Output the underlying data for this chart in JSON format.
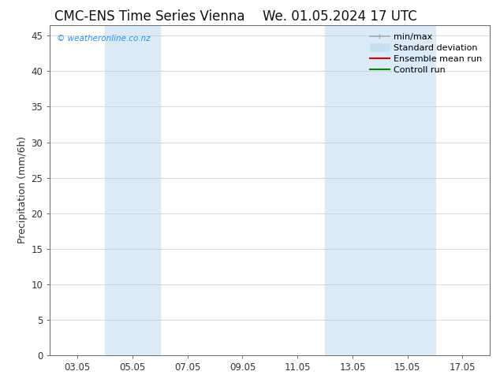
{
  "title_left": "CMC-ENS Time Series Vienna",
  "title_right": "We. 01.05.2024 17 UTC",
  "ylabel": "Precipitation (mm/6h)",
  "xtick_labels": [
    "03.05",
    "05.05",
    "07.05",
    "09.05",
    "11.05",
    "13.05",
    "15.05",
    "17.05"
  ],
  "xtick_positions": [
    1.0,
    3.0,
    5.0,
    7.0,
    9.0,
    11.0,
    13.0,
    15.0
  ],
  "xlim": [
    0,
    16
  ],
  "ylim": [
    0,
    46.5
  ],
  "yticks": [
    0,
    5,
    10,
    15,
    20,
    25,
    30,
    35,
    40,
    45
  ],
  "shaded_regions": [
    {
      "xmin": 2.0,
      "xmax": 4.0,
      "color": "#daeaf7"
    },
    {
      "xmin": 10.0,
      "xmax": 12.0,
      "color": "#daeaf7"
    },
    {
      "xmin": 12.0,
      "xmax": 14.0,
      "color": "#daeaf7"
    }
  ],
  "legend_items": [
    {
      "label": "min/max",
      "color": "#aaaaaa",
      "lw": 1.2,
      "style": "solid",
      "type": "line_with_caps"
    },
    {
      "label": "Standard deviation",
      "color": "#c8dff0",
      "lw": 8,
      "style": "solid",
      "type": "thick_line"
    },
    {
      "label": "Ensemble mean run",
      "color": "#dd0000",
      "lw": 1.5,
      "style": "solid",
      "type": "line"
    },
    {
      "label": "Controll run",
      "color": "#008800",
      "lw": 1.5,
      "style": "solid",
      "type": "line"
    }
  ],
  "watermark": "© weatheronline.co.nz",
  "watermark_color": "#1e90ff",
  "bg_color": "#ffffff",
  "plot_bg_color": "#ffffff",
  "grid_color": "#cccccc",
  "tick_label_color": "#333333",
  "axis_color": "#555555",
  "title_fontsize": 12,
  "tick_fontsize": 8.5,
  "ylabel_fontsize": 9,
  "legend_fontsize": 8
}
